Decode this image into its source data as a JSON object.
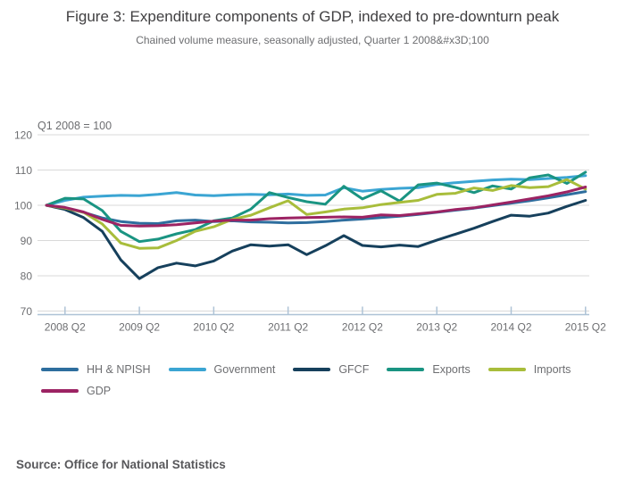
{
  "header": {
    "title": "Figure 3: Expenditure components of GDP, indexed to pre-downturn peak",
    "subtitle": "Chained volume measure, seasonally adjusted, Quarter 1 2008&#x3D;100"
  },
  "chart": {
    "note": "Q1 2008 = 100",
    "text_color": "#6d6e71",
    "grid_color": "#d9d9d9",
    "axis_color": "#aec3d6"
  },
  "chart_data": {
    "type": "line",
    "title": "Figure 3: Expenditure components of GDP, indexed to pre-downturn peak",
    "subtitle": "Chained volume measure, seasonally adjusted, Quarter 1 2008&#x3D;100",
    "ylabel_note": "Q1 2008 = 100",
    "ylim": [
      70,
      120
    ],
    "yticks": [
      120,
      110,
      100,
      90,
      80,
      70
    ],
    "grid": "horizontal",
    "legend_position": "bottom",
    "x": [
      "2008 Q1",
      "2008 Q2",
      "2008 Q3",
      "2008 Q4",
      "2009 Q1",
      "2009 Q2",
      "2009 Q3",
      "2009 Q4",
      "2010 Q1",
      "2010 Q2",
      "2010 Q3",
      "2010 Q4",
      "2011 Q1",
      "2011 Q2",
      "2011 Q3",
      "2011 Q4",
      "2012 Q1",
      "2012 Q2",
      "2012 Q3",
      "2012 Q4",
      "2013 Q1",
      "2013 Q2",
      "2013 Q3",
      "2013 Q4",
      "2014 Q1",
      "2014 Q2",
      "2014 Q3",
      "2014 Q4",
      "2015 Q1",
      "2015 Q2"
    ],
    "xtick_labels": [
      "2008 Q2",
      "2009 Q2",
      "2010 Q2",
      "2011 Q2",
      "2012 Q2",
      "2013 Q2",
      "2014 Q2",
      "2015 Q2"
    ],
    "xtick_indices": [
      1,
      5,
      9,
      13,
      17,
      21,
      25,
      29
    ],
    "series": [
      {
        "id": "hh-npish",
        "name": "HH & NPISH",
        "color": "#2e6e9e",
        "values": [
          100,
          99.2,
          98.0,
          96.4,
          95.4,
          94.9,
          94.8,
          95.6,
          95.8,
          95.4,
          95.6,
          95.3,
          95.2,
          95.0,
          95.1,
          95.4,
          95.8,
          96.1,
          96.5,
          96.9,
          97.4,
          98.0,
          98.6,
          99.2,
          99.9,
          100.6,
          101.3,
          102.1,
          103.0,
          103.9
        ]
      },
      {
        "id": "government",
        "name": "Government",
        "color": "#3ba5d3",
        "values": [
          100,
          101.4,
          102.3,
          102.6,
          102.8,
          102.7,
          103.1,
          103.6,
          102.9,
          102.7,
          103.0,
          103.1,
          103.0,
          103.2,
          102.8,
          102.9,
          105.0,
          104.0,
          104.5,
          104.8,
          105.0,
          105.9,
          106.4,
          106.8,
          107.2,
          107.4,
          107.3,
          107.6,
          107.9,
          108.4
        ]
      },
      {
        "id": "gfcf",
        "name": "GFCF",
        "color": "#16405c",
        "values": [
          100,
          98.8,
          96.5,
          92.6,
          84.5,
          79.2,
          82.3,
          83.6,
          82.8,
          84.2,
          87.0,
          88.8,
          88.4,
          88.8,
          86.0,
          88.5,
          91.4,
          88.6,
          88.2,
          88.7,
          88.3,
          90.1,
          91.8,
          93.5,
          95.4,
          97.2,
          96.9,
          97.8,
          99.7,
          101.4
        ]
      },
      {
        "id": "exports",
        "name": "Exports",
        "color": "#1a9482",
        "values": [
          100,
          102.0,
          101.8,
          98.5,
          92.6,
          89.7,
          90.4,
          91.9,
          93.1,
          95.6,
          96.4,
          98.9,
          103.6,
          102.2,
          101.0,
          100.3,
          105.4,
          101.8,
          104.1,
          101.2,
          105.8,
          106.3,
          105.1,
          103.6,
          105.5,
          104.6,
          107.8,
          108.6,
          106.2,
          109.4
        ]
      },
      {
        "id": "imports",
        "name": "Imports",
        "color": "#a8bd3b",
        "values": [
          100,
          99.2,
          98.0,
          94.7,
          89.3,
          87.8,
          87.9,
          90.0,
          92.6,
          93.9,
          96.0,
          97.2,
          99.3,
          101.3,
          97.4,
          98.1,
          98.9,
          99.3,
          100.2,
          100.8,
          101.4,
          103.1,
          103.4,
          104.9,
          104.2,
          105.6,
          105.0,
          105.3,
          107.3,
          104.6
        ]
      },
      {
        "id": "gdp",
        "name": "GDP",
        "color": "#9c2363",
        "values": [
          100,
          99.4,
          98.1,
          96.0,
          94.3,
          94.1,
          94.2,
          94.5,
          95.0,
          95.5,
          95.8,
          95.8,
          96.2,
          96.4,
          96.5,
          96.6,
          96.7,
          96.6,
          97.3,
          97.1,
          97.6,
          98.1,
          98.8,
          99.3,
          100.1,
          100.9,
          101.8,
          102.7,
          103.8,
          105.2
        ]
      }
    ]
  },
  "footer": {
    "source": "Source: Office for National Statistics"
  }
}
